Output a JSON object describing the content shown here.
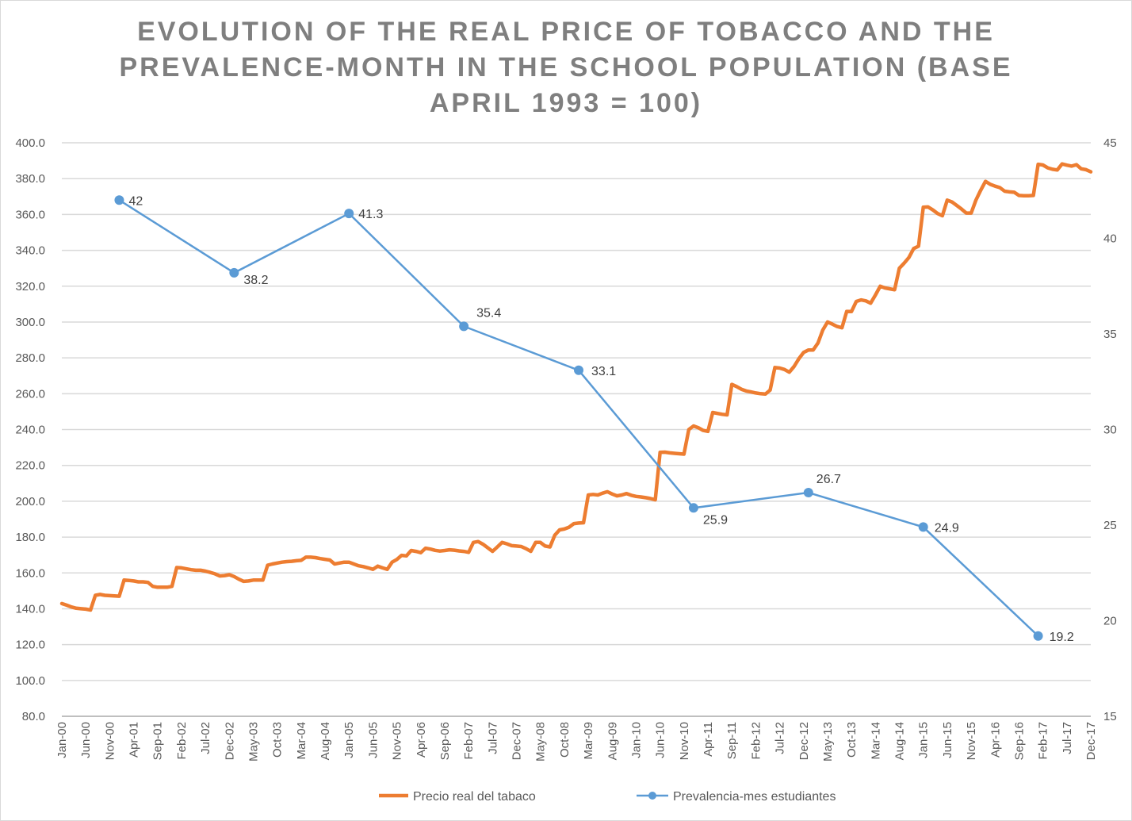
{
  "chart_data": {
    "type": "line",
    "title_lines": [
      "EVOLUTION OF THE REAL PRICE OF TOBACCO AND THE",
      "PREVALENCE-MONTH IN THE SCHOOL POPULATION (BASE",
      "APRIL 1993 = 100)"
    ],
    "xlabel": "",
    "ylabel": "",
    "y_left": {
      "range": [
        80,
        400
      ],
      "ticks": [
        "80.0",
        "100.0",
        "120.0",
        "140.0",
        "160.0",
        "180.0",
        "200.0",
        "220.0",
        "240.0",
        "260.0",
        "280.0",
        "300.0",
        "320.0",
        "340.0",
        "360.0",
        "380.0",
        "400.0"
      ]
    },
    "y_right": {
      "range": [
        15,
        45
      ],
      "ticks": [
        "15",
        "20",
        "25",
        "30",
        "35",
        "40",
        "45"
      ]
    },
    "x_range": [
      "Jan-00",
      "Dec-17"
    ],
    "x_frequency": "monthly",
    "x_tick_labels": [
      "Jan-00",
      "Jun-00",
      "Nov-00",
      "Apr-01",
      "Sep-01",
      "Feb-02",
      "Jul-02",
      "Dec-02",
      "May-03",
      "Oct-03",
      "Mar-04",
      "Aug-04",
      "Jan-05",
      "Jun-05",
      "Nov-05",
      "Apr-06",
      "Sep-06",
      "Feb-07",
      "Jul-07",
      "Dec-07",
      "May-08",
      "Oct-08",
      "Mar-09",
      "Aug-09",
      "Jan-10",
      "Jun-10",
      "Nov-10",
      "Apr-11",
      "Sep-11",
      "Feb-12",
      "Jul-12",
      "Dec-12",
      "May-13",
      "Oct-13",
      "Mar-14",
      "Aug-14",
      "Jan-15",
      "Jun-15",
      "Nov-15",
      "Apr-16",
      "Sep-16",
      "Feb-17",
      "Jul-17",
      "Dec-17"
    ],
    "grid": "horizontal",
    "legend_position": "bottom",
    "series": [
      {
        "name": "Precio real del tabaco",
        "axis": "left",
        "color": "#ed7d31",
        "x_start": "Jan-00",
        "values": [
          142.9,
          142,
          141,
          140.3,
          140,
          139.8,
          139.3,
          147.5,
          148,
          147.5,
          147.3,
          147.2,
          147,
          156,
          155.8,
          155.5,
          155,
          155,
          154.7,
          152.5,
          152,
          152,
          152,
          152.5,
          163,
          162.8,
          162.3,
          161.8,
          161.5,
          161.5,
          161,
          160.3,
          159.5,
          158.3,
          158.5,
          159,
          158,
          156.5,
          155.3,
          155.5,
          156,
          156,
          156,
          164.3,
          165,
          165.5,
          166,
          166.3,
          166.5,
          166.8,
          167,
          168.8,
          168.8,
          168.5,
          168,
          167.6,
          167.2,
          165,
          165.5,
          166,
          166,
          165,
          164,
          163.5,
          162.8,
          162,
          163.8,
          162.8,
          162,
          166,
          167.5,
          169.8,
          169.5,
          172.5,
          172,
          171.3,
          173.8,
          173.3,
          172.6,
          172.2,
          172.5,
          172.9,
          172.7,
          172.3,
          172,
          171.5,
          177,
          177.5,
          176,
          174,
          172,
          174.5,
          177,
          176.2,
          175.2,
          175,
          174.7,
          173.5,
          172,
          177,
          177,
          175,
          174.5,
          181,
          184,
          184.5,
          185.5,
          187.5,
          187.8,
          188,
          203.5,
          203.8,
          203.5,
          204.5,
          205.3,
          204,
          203,
          203.5,
          204.3,
          203.3,
          202.7,
          202.4,
          202,
          201.5,
          200.8,
          227.3,
          227.4,
          227,
          226.7,
          226.5,
          226.3,
          240,
          242,
          241,
          239.5,
          239,
          249.5,
          249,
          248.5,
          248.2,
          265.2,
          264,
          262.5,
          261.5,
          261,
          260.4,
          260,
          259.8,
          262,
          274.6,
          274.3,
          273.5,
          272,
          275.2,
          279.5,
          283,
          284.4,
          284.4,
          288.3,
          295.5,
          300,
          298.8,
          297.5,
          296.8,
          305.9,
          305.8,
          311.5,
          312.3,
          311.8,
          310.5,
          315,
          320,
          319,
          318.5,
          318,
          330,
          332.8,
          336,
          341,
          342.3,
          364,
          364.2,
          362.5,
          360.5,
          359.3,
          368,
          367,
          365,
          363,
          360.8,
          360.8,
          368,
          373.5,
          378.5,
          376.8,
          375.8,
          375,
          373,
          372.6,
          372.4,
          370.6,
          370.5,
          370.5,
          370.6,
          388,
          387.6,
          386,
          385.2,
          384.8,
          388.2,
          387.5,
          387,
          387.8,
          385.5,
          385,
          383.8
        ]
      },
      {
        "name": "Prevalencia-mes estudiantes",
        "axis": "right",
        "color": "#5b9bd5",
        "x": [
          "Jan-01",
          "Jan-03",
          "Jan-05",
          "Jan-07",
          "Jan-09",
          "Jan-11",
          "Jan-13",
          "Jan-15",
          "Jan-17"
        ],
        "values": [
          42,
          38.2,
          41.3,
          35.4,
          33.1,
          25.9,
          26.7,
          24.9,
          19.2
        ],
        "data_labels": [
          "42",
          "38.2",
          "41.3",
          "35.4",
          "33.1",
          "25.9",
          "26.7",
          "24.9",
          "19.2"
        ]
      }
    ]
  }
}
